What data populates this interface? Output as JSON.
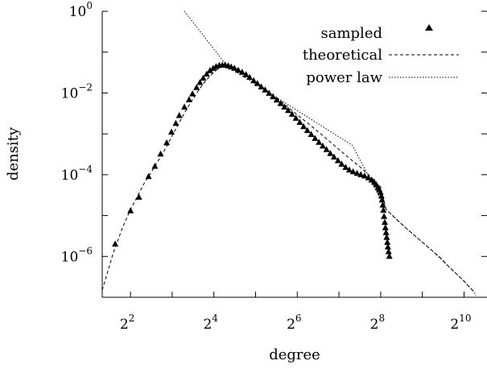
{
  "chart_data": {
    "type": "scatter",
    "xlabel": "degree",
    "ylabel": "density",
    "x_scale": "log2",
    "y_scale": "log10",
    "xlim": [
      2.5,
      1500
    ],
    "ylim": [
      1e-07,
      1
    ],
    "x_ticks": [
      {
        "base": "2",
        "exp": "2",
        "value": 4
      },
      {
        "base": "2",
        "exp": "4",
        "value": 16
      },
      {
        "base": "2",
        "exp": "6",
        "value": 64
      },
      {
        "base": "2",
        "exp": "8",
        "value": 256
      },
      {
        "base": "2",
        "exp": "10",
        "value": 1024
      }
    ],
    "y_ticks": [
      {
        "base": "10",
        "exp": "0",
        "value": 1
      },
      {
        "base": "10",
        "exp": "−2",
        "value": 0.01
      },
      {
        "base": "10",
        "exp": "−4",
        "value": 0.0001
      },
      {
        "base": "10",
        "exp": "−6",
        "value": 1e-06
      }
    ],
    "legend_position": "top-right",
    "series": [
      {
        "name": "sampled",
        "style": "triangle-markers",
        "points": [
          [
            3.1,
            2e-06
          ],
          [
            4.0,
            1.3e-05
          ],
          [
            4.6,
            2.8e-05
          ],
          [
            5.4,
            9e-05
          ],
          [
            6.0,
            0.00016
          ],
          [
            6.6,
            0.00032
          ],
          [
            7.3,
            0.0006
          ],
          [
            7.9,
            0.0011
          ],
          [
            8.5,
            0.0018
          ],
          [
            9.0,
            0.0028
          ],
          [
            9.8,
            0.0045
          ],
          [
            10.6,
            0.0068
          ],
          [
            11.2,
            0.0095
          ],
          [
            12,
            0.0135
          ],
          [
            12.7,
            0.018
          ],
          [
            13.4,
            0.023
          ],
          [
            14.2,
            0.029
          ],
          [
            15,
            0.035
          ],
          [
            15.8,
            0.04
          ],
          [
            16.6,
            0.044
          ],
          [
            17.5,
            0.047
          ],
          [
            18.4,
            0.048
          ],
          [
            19.3,
            0.048
          ],
          [
            20.3,
            0.046
          ],
          [
            21.3,
            0.043
          ],
          [
            22.5,
            0.04
          ],
          [
            24,
            0.036
          ],
          [
            25.6,
            0.032
          ],
          [
            27.3,
            0.028
          ],
          [
            29,
            0.024
          ],
          [
            31,
            0.02
          ],
          [
            33,
            0.017
          ],
          [
            35.2,
            0.014
          ],
          [
            37.5,
            0.0118
          ],
          [
            40,
            0.0098
          ],
          [
            42.7,
            0.0081
          ],
          [
            45.5,
            0.0067
          ],
          [
            48.5,
            0.0055
          ],
          [
            51.7,
            0.0045
          ],
          [
            55,
            0.0037
          ],
          [
            58.7,
            0.003
          ],
          [
            62.6,
            0.0024
          ],
          [
            66.7,
            0.0019
          ],
          [
            71,
            0.0015
          ],
          [
            75.7,
            0.0012
          ],
          [
            80.7,
            0.00096
          ],
          [
            86,
            0.00077
          ],
          [
            91.7,
            0.00062
          ],
          [
            97.7,
            0.0005
          ],
          [
            104,
            0.00041
          ],
          [
            111,
            0.00033
          ],
          [
            118,
            0.00027
          ],
          [
            126,
            0.00022
          ],
          [
            134,
            0.00018
          ],
          [
            143,
            0.00015
          ],
          [
            152,
            0.00013
          ],
          [
            162,
            0.000118
          ],
          [
            173,
            0.000108
          ],
          [
            184,
            0.0001
          ],
          [
            196,
            9.3e-05
          ],
          [
            209,
            8.4e-05
          ],
          [
            220,
            7.4e-05
          ],
          [
            230,
            6.5e-05
          ],
          [
            238,
            5.7e-05
          ],
          [
            245,
            4.9e-05
          ],
          [
            250,
            4.3e-05
          ],
          [
            255,
            3.7e-05
          ],
          [
            259,
            3e-05
          ],
          [
            262,
            2.4e-05
          ],
          [
            265,
            1.8e-05
          ],
          [
            268,
            1.35e-05
          ],
          [
            271,
            9.5e-06
          ],
          [
            274,
            6.8e-06
          ],
          [
            277,
            5e-06
          ],
          [
            280,
            3.8e-06
          ],
          [
            283,
            2.9e-06
          ],
          [
            286,
            2.2e-06
          ],
          [
            289,
            1.7e-06
          ],
          [
            292,
            1.3e-06
          ],
          [
            296,
            1e-06
          ]
        ]
      },
      {
        "name": "theoretical",
        "style": "dashed-line",
        "points": [
          [
            2.5,
            1.5e-07
          ],
          [
            3.0,
            1.2e-06
          ],
          [
            3.5,
            5e-06
          ],
          [
            4.0,
            1.4e-05
          ],
          [
            4.5,
            3e-05
          ],
          [
            5,
            6e-05
          ],
          [
            6,
            0.00016
          ],
          [
            7,
            0.00038
          ],
          [
            8,
            0.0009
          ],
          [
            9,
            0.0019
          ],
          [
            10,
            0.0036
          ],
          [
            11,
            0.0062
          ],
          [
            12,
            0.0098
          ],
          [
            13,
            0.0145
          ],
          [
            14,
            0.02
          ],
          [
            15,
            0.026
          ],
          [
            16,
            0.032
          ],
          [
            17,
            0.038
          ],
          [
            18,
            0.043
          ],
          [
            19,
            0.046
          ],
          [
            20,
            0.047
          ],
          [
            21,
            0.046
          ],
          [
            22,
            0.043
          ],
          [
            24,
            0.037
          ],
          [
            27,
            0.028
          ],
          [
            30,
            0.022
          ],
          [
            35,
            0.0148
          ],
          [
            40,
            0.0105
          ],
          [
            50,
            0.0058
          ],
          [
            60,
            0.0035
          ],
          [
            70,
            0.0023
          ],
          [
            80,
            0.0016
          ],
          [
            100,
            0.00085
          ],
          [
            120,
            0.0005
          ],
          [
            140,
            0.00032
          ],
          [
            160,
            0.00022
          ],
          [
            180,
            0.00016
          ],
          [
            200,
            0.000115
          ],
          [
            220,
            8.5e-05
          ],
          [
            240,
            6.2e-05
          ],
          [
            256,
            5e-05
          ],
          [
            280,
            1.42e-05
          ],
          [
            330,
            8.2e-06
          ],
          [
            400,
            4.6e-06
          ],
          [
            500,
            2.4e-06
          ],
          [
            600,
            1.4e-06
          ],
          [
            700,
            9e-07
          ],
          [
            800,
            5.5e-07
          ],
          [
            1000,
            2.7e-07
          ],
          [
            1100,
            1.9e-07
          ],
          [
            1200,
            1.4e-07
          ]
        ]
      },
      {
        "name": "power law",
        "style": "dotted-line",
        "points": [
          [
            9.8,
            1.0
          ],
          [
            20,
            0.045
          ],
          [
            40,
            0.0102
          ],
          [
            80,
            0.0023
          ],
          [
            160,
            0.00052
          ],
          [
            280,
            1.42e-05
          ],
          [
            400,
            4.6e-06
          ],
          [
            600,
            1.4e-06
          ],
          [
            800,
            5.5e-07
          ],
          [
            1000,
            2.7e-07
          ],
          [
            1200,
            1.4e-07
          ],
          [
            1250,
            1.1e-07
          ]
        ]
      }
    ]
  }
}
